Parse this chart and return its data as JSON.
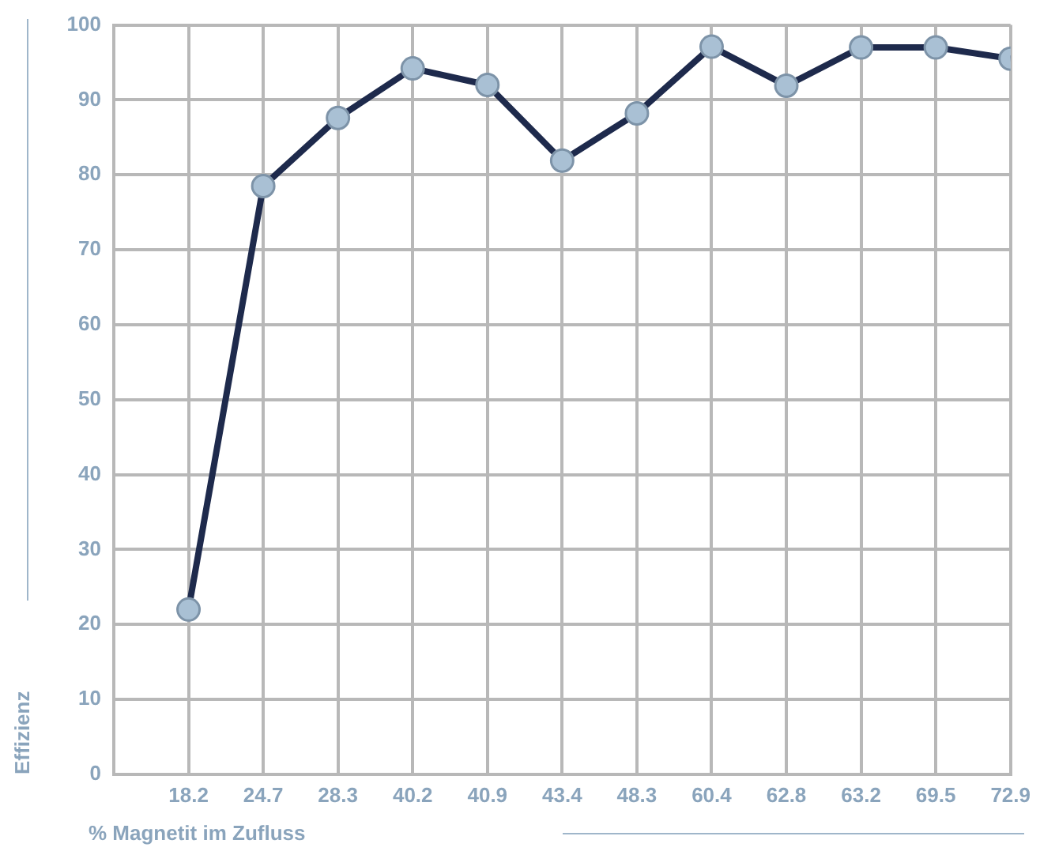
{
  "chart_data": {
    "type": "line",
    "xlabel": "% Magnetit im Zufluss",
    "ylabel": "Effizienz",
    "categories": [
      "18.2",
      "24.7",
      "28.3",
      "40.2",
      "40.9",
      "43.4",
      "48.3",
      "60.4",
      "62.8",
      "63.2",
      "69.5",
      "72.9"
    ],
    "series": [
      {
        "color": "#1e2a4c",
        "values": [
          22,
          78.5,
          87.6,
          94.2,
          92,
          81.9,
          88.2,
          97.1,
          91.9,
          97,
          97,
          95.5
        ]
      }
    ],
    "ylim": [
      0,
      100
    ],
    "yticks": [
      0,
      10,
      20,
      30,
      40,
      50,
      60,
      70,
      80,
      90,
      100
    ],
    "grid": true,
    "legend": false,
    "marker": "circle",
    "line_style": "solid"
  }
}
